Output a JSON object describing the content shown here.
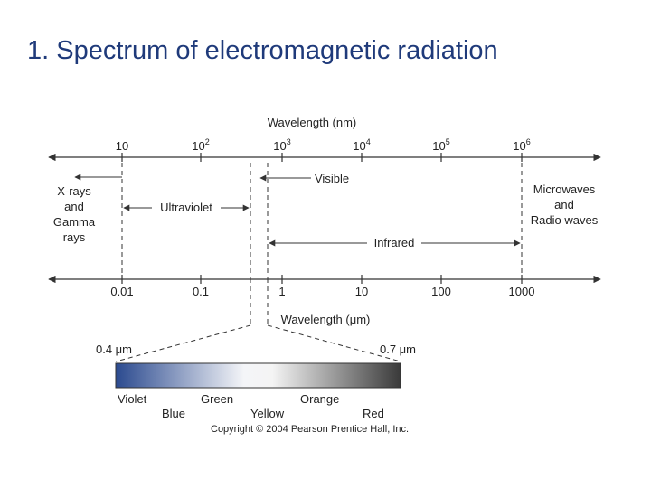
{
  "title": "1. Spectrum of electromagnetic radiation",
  "top_axis": {
    "label": "Wavelength (nm)",
    "ticks": [
      {
        "base": "10",
        "exp": ""
      },
      {
        "base": "10",
        "exp": "2"
      },
      {
        "base": "10",
        "exp": "3"
      },
      {
        "base": "10",
        "exp": "4"
      },
      {
        "base": "10",
        "exp": "5"
      },
      {
        "base": "10",
        "exp": "6"
      }
    ]
  },
  "bottom_axis": {
    "label": "Wavelength (μm)",
    "ticks": [
      "0.01",
      "0.1",
      "1",
      "10",
      "100",
      "1000"
    ]
  },
  "regions": {
    "xray_lines": [
      "X-rays",
      "and",
      "Gamma",
      "rays"
    ],
    "ultraviolet": "Ultraviolet",
    "visible": "Visible",
    "infrared": "Infrared",
    "micro_lines": [
      "Microwaves",
      "and",
      "Radio waves"
    ]
  },
  "visible_band": {
    "start_label": "0.4 μm",
    "end_label": "0.7 μm",
    "colors_top": [
      "Violet",
      "Green",
      "Orange"
    ],
    "colors_bottom": [
      "Blue",
      "Yellow",
      "Red"
    ]
  },
  "copyright": "Copyright © 2004 Pearson Prentice Hall, Inc.",
  "colors": {
    "title": "#1f3a7a",
    "gradient_start": "#2b4a8f",
    "gradient_end": "#3a3a3a",
    "line": "#333333"
  }
}
